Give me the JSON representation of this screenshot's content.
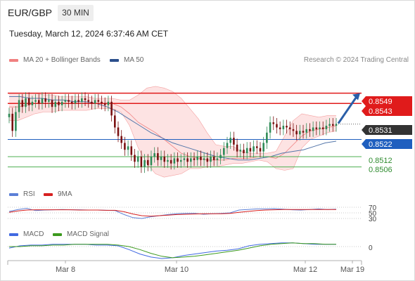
{
  "header": {
    "symbol": "EUR/GBP",
    "timeframe": "30 MIN",
    "datetime": "Tuesday, March 12, 2024 6:37:46 AM CET"
  },
  "legend": {
    "bollinger_label": "MA 20 + Bollinger Bands",
    "ma50_label": "MA 50",
    "credit": "Research © 2024 Trading Central",
    "rsi_label": "RSI",
    "rsi_ma_label": "9MA",
    "macd_label": "MACD",
    "macd_signal_label": "MACD Signal"
  },
  "colors": {
    "bull": "#2e8b57",
    "bear": "#7a1010",
    "bollinger": "#f08080",
    "band_fill": "#fde3e3",
    "ma50": "#5577aa",
    "resistance": "#e01b1b",
    "support_blue": "#1f5fbf",
    "support_green": "#4caf50",
    "arrow": "#2a5ea8",
    "rsi": "#5b7fd6",
    "rsi_ma": "#d62020",
    "macd": "#4169e1",
    "macd_signal": "#3c9a1e"
  },
  "chart_data": {
    "type": "candlestick",
    "ylim": [
      0.8496,
      0.8555
    ],
    "x_ticks": [
      "Mar 8",
      "Mar 10",
      "Mar 12",
      "Mar 19"
    ],
    "levels": [
      {
        "value": 0.8549,
        "label": "0.8549",
        "kind": "resistance",
        "style": "red-box"
      },
      {
        "value": 0.8543,
        "label": "0.8543",
        "kind": "resistance",
        "style": "red-box"
      },
      {
        "value": 0.8531,
        "label": "0.8531",
        "kind": "last-price",
        "style": "dark-box"
      },
      {
        "value": 0.8522,
        "label": "0.8522",
        "kind": "pivot",
        "style": "blue-box"
      },
      {
        "value": 0.8512,
        "label": "0.8512",
        "kind": "support",
        "style": "green-text"
      },
      {
        "value": 0.8506,
        "label": "0.8506",
        "kind": "support",
        "style": "green-text"
      }
    ],
    "forecast_arrow": {
      "from": 0.8531,
      "to": 0.8549
    },
    "close": [
      0.8537,
      0.8527,
      0.8538,
      0.8545,
      0.8541,
      0.8546,
      0.8542,
      0.8544,
      0.8545,
      0.8543,
      0.8546,
      0.8544,
      0.8545,
      0.8541,
      0.8544,
      0.8542,
      0.8544,
      0.8545,
      0.8544,
      0.8543,
      0.8545,
      0.8544,
      0.8546,
      0.8545,
      0.8544,
      0.8543,
      0.8545,
      0.8544,
      0.8543,
      0.8542,
      0.8544,
      0.8536,
      0.8529,
      0.8524,
      0.852,
      0.8516,
      0.8518,
      0.8513,
      0.8509,
      0.8512,
      0.8506,
      0.851,
      0.8507,
      0.8512,
      0.8514,
      0.851,
      0.8512,
      0.8509,
      0.851,
      0.8508,
      0.8511,
      0.8509,
      0.851,
      0.8511,
      0.8509,
      0.8511,
      0.851,
      0.8512,
      0.851,
      0.8511,
      0.8509,
      0.8512,
      0.851,
      0.8511,
      0.8513,
      0.8517,
      0.852,
      0.8523,
      0.8519,
      0.8515,
      0.8516,
      0.8514,
      0.8517,
      0.8515,
      0.8518,
      0.8517,
      0.8515,
      0.852,
      0.8526,
      0.8532,
      0.8531,
      0.8529,
      0.8528,
      0.853,
      0.8529,
      0.8528,
      0.8527,
      0.8525,
      0.8527,
      0.8526,
      0.8528,
      0.8527,
      0.8529,
      0.8528,
      0.8529,
      0.8528,
      0.853,
      0.8531,
      0.853,
      0.8531
    ],
    "bollinger": {
      "upper": [
        0.8549,
        0.8549,
        0.8549,
        0.8549,
        0.8548,
        0.8548,
        0.8547,
        0.8547,
        0.8547,
        0.8547,
        0.8546,
        0.8546,
        0.8546,
        0.8545,
        0.8545,
        0.8548,
        0.8552,
        0.8553,
        0.8552,
        0.855,
        0.8546,
        0.854,
        0.8534,
        0.8526,
        0.8519,
        0.8518,
        0.8518,
        0.8515,
        0.8514,
        0.8514,
        0.8514,
        0.8515,
        0.8524,
        0.8533,
        0.8537,
        0.8536,
        0.8535,
        0.8536,
        0.8536
      ],
      "lower": [
        0.8533,
        0.8533,
        0.8535,
        0.8537,
        0.8538,
        0.8538,
        0.8539,
        0.8539,
        0.8539,
        0.8539,
        0.854,
        0.854,
        0.854,
        0.8538,
        0.853,
        0.8517,
        0.8508,
        0.8502,
        0.85,
        0.8501,
        0.8502,
        0.8505,
        0.8505,
        0.8506,
        0.8506,
        0.8507,
        0.8508,
        0.8508,
        0.8509,
        0.851,
        0.8509,
        0.8505,
        0.8504,
        0.8505,
        0.8517,
        0.8522,
        0.8524,
        0.8526,
        0.8527
      ],
      "middle": [
        0.8541,
        0.8541,
        0.8542,
        0.8543,
        0.8543,
        0.8543,
        0.8543,
        0.8543,
        0.8543,
        0.8543,
        0.8543,
        0.8543,
        0.8543,
        0.8541,
        0.8537,
        0.8532,
        0.8529,
        0.8526,
        0.8522,
        0.8518,
        0.8514,
        0.8512,
        0.8511,
        0.851,
        0.851,
        0.851,
        0.8511,
        0.8511,
        0.8511,
        0.8512,
        0.8512,
        0.8511,
        0.8514,
        0.8519,
        0.8524,
        0.8527,
        0.8528,
        0.8529,
        0.853
      ]
    },
    "ma50": [
      0.8547,
      0.8547,
      0.8546,
      0.8546,
      0.8545,
      0.8545,
      0.8544,
      0.8544,
      0.8543,
      0.8541,
      0.8538,
      0.8534,
      0.853,
      0.8526,
      0.8523,
      0.852,
      0.8518,
      0.8516,
      0.8514,
      0.8512,
      0.8511,
      0.851,
      0.851,
      0.8511,
      0.8512,
      0.8514,
      0.8515,
      0.8516,
      0.8518,
      0.852,
      0.8521
    ],
    "rsi": {
      "levels": [
        70,
        50,
        30
      ],
      "rsi": [
        55,
        62,
        66,
        58,
        60,
        61,
        62,
        61,
        61,
        60,
        60,
        59,
        58,
        44,
        33,
        30,
        36,
        40,
        44,
        47,
        48,
        48,
        45,
        47,
        48,
        50,
        60,
        62,
        64,
        64,
        65,
        63,
        61,
        60,
        62,
        64,
        62,
        63
      ],
      "ma9": [
        52,
        57,
        60,
        61,
        61,
        61,
        61,
        61,
        60,
        60,
        60,
        59,
        59,
        54,
        46,
        40,
        38,
        40,
        42,
        44,
        45,
        46,
        47,
        47,
        47,
        48,
        52,
        55,
        58,
        60,
        61,
        62,
        62,
        62,
        62,
        62,
        62,
        62
      ]
    },
    "macd": {
      "zero_label": "0",
      "macd": [
        -0.0002,
        0.0001,
        0.0002,
        0.0002,
        0.0003,
        0.0003,
        0.0003,
        0.0003,
        0.0002,
        0.0002,
        0.0001,
        -0.0004,
        -0.001,
        -0.0014,
        -0.0016,
        -0.0015,
        -0.0012,
        -0.001,
        -0.0008,
        -0.0006,
        -0.0005,
        -0.0003,
        0.0001,
        0.0003,
        0.0004,
        0.0005,
        0.0005,
        0.0004,
        0.0003,
        0.0003,
        0.0003
      ],
      "signal": [
        0.0,
        0.0,
        0.0001,
        0.0001,
        0.0002,
        0.0002,
        0.0003,
        0.0003,
        0.0003,
        0.0003,
        0.0002,
        0.0,
        -0.0004,
        -0.0009,
        -0.0013,
        -0.0015,
        -0.0014,
        -0.0013,
        -0.0011,
        -0.0009,
        -0.0007,
        -0.0005,
        -0.0002,
        0.0001,
        0.0003,
        0.0004,
        0.0005,
        0.0004,
        0.0004,
        0.0003,
        0.0003
      ]
    }
  }
}
